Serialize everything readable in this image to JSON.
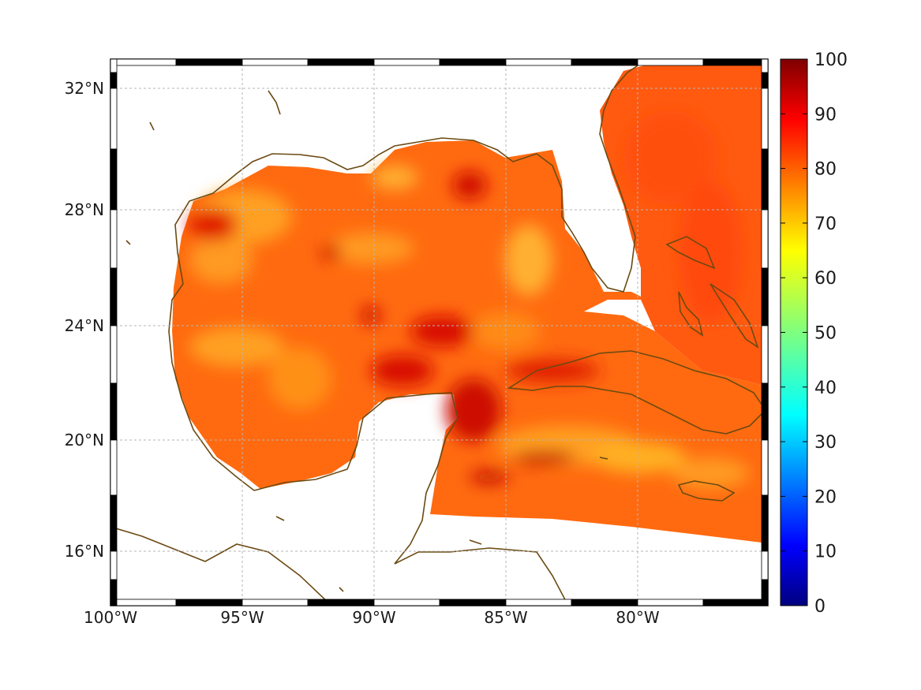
{
  "chart_data": {
    "type": "heatmap",
    "title": "",
    "xlabel": "",
    "ylabel": "",
    "x_ticks": [
      "100°W",
      "95°W",
      "90°W",
      "85°W",
      "80°W"
    ],
    "y_ticks": [
      "32°N",
      "28°N",
      "24°N",
      "20°N",
      "16°N"
    ],
    "lon_range": [
      -100,
      -75
    ],
    "lat_range": [
      14.3,
      33
    ],
    "grid": true,
    "colorbar": {
      "position": "right",
      "range": [
        0,
        100
      ],
      "ticks": [
        "0",
        "10",
        "20",
        "30",
        "40",
        "50",
        "60",
        "70",
        "80",
        "90",
        "100"
      ],
      "colormap": "jet"
    },
    "field_description_values": {
      "typical_min": 68,
      "typical_max": 95
    },
    "colors": {
      "coastline": "#6b4a12",
      "grid": "#b0b0b0",
      "field_low": "#ffa000",
      "field_mid": "#ff4000",
      "field_high": "#c80000"
    }
  }
}
